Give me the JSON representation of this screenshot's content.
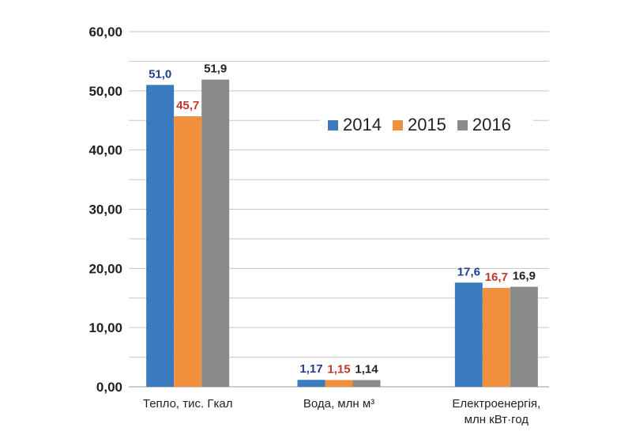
{
  "colors": {
    "2014": "#3a7bbf",
    "2015": "#f0903c",
    "2016": "#8a8a8a",
    "grid": "#c7c7c7",
    "label_2014": "#1f3f8f",
    "label_2015": "#c0392b",
    "label_2016": "#222222"
  },
  "chart_data": {
    "type": "bar",
    "categories": [
      "Тепло, тис. Гкал",
      "Вода, млн  м³",
      "Електроенергія,\nмлн  кВт·год"
    ],
    "series": [
      {
        "name": "2014",
        "values": [
          51.0,
          1.17,
          17.6
        ],
        "labels": [
          "51,0",
          "1,17",
          "17,6"
        ]
      },
      {
        "name": "2015",
        "values": [
          45.7,
          1.15,
          16.7
        ],
        "labels": [
          "45,7",
          "1,15",
          "16,7"
        ]
      },
      {
        "name": "2016",
        "values": [
          51.9,
          1.14,
          16.9
        ],
        "labels": [
          "51,9",
          "1,14",
          "16,9"
        ]
      }
    ],
    "yticks": [
      "0,00",
      "10,00",
      "20,00",
      "30,00",
      "40,00",
      "50,00",
      "60,00"
    ],
    "ylim": [
      0,
      60
    ],
    "legend_position": "top-right",
    "title": "",
    "xlabel": "",
    "ylabel": ""
  }
}
